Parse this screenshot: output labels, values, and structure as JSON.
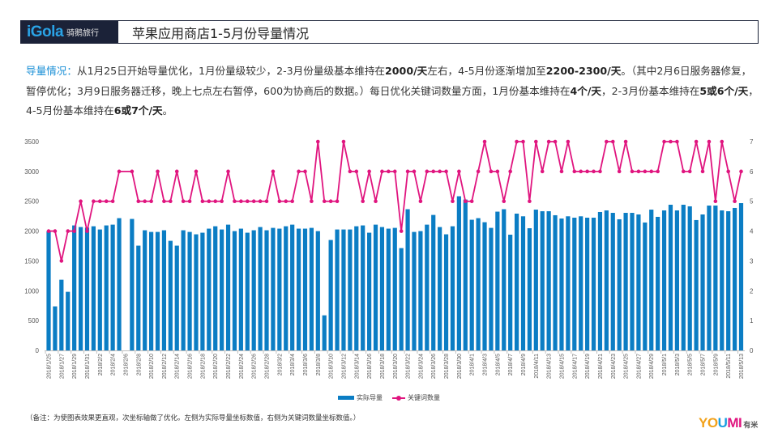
{
  "header": {
    "logo_main": "iGola",
    "logo_sub": "骑鹅旅行",
    "title": "苹果应用商店1-5月份导量情况"
  },
  "intro": {
    "segments": [
      {
        "text": "导量情况：",
        "style": "accent"
      },
      {
        "text": "从1月25日开始导量优化，1月份量级较少，2-3月份量级基本维持在"
      },
      {
        "text": "2000/天",
        "style": "bold"
      },
      {
        "text": "左右，4-5月份逐渐增加至"
      },
      {
        "text": "2200-2300/天",
        "style": "bold"
      },
      {
        "text": "。（其中2月6日服务器修复，暂停优化；3月9日服务器迁移，晚上七点左右暂停，600为协商后的数据。）每日优化关键词数量方面，1月份基本维持在"
      },
      {
        "text": "4个/天",
        "style": "bold"
      },
      {
        "text": "，2-3月份基本维持在"
      },
      {
        "text": "5或6个/天",
        "style": "bold"
      },
      {
        "text": "，4-5月份基本维持在"
      },
      {
        "text": "6或7个/天",
        "style": "bold"
      },
      {
        "text": "。"
      }
    ]
  },
  "chart_data": {
    "type": "bar+line",
    "grid": false,
    "legend_position": "bottom",
    "colors": {
      "bars": "#0b7dc4",
      "line": "#e0157f",
      "accent": "#1a8fd6"
    },
    "left_axis": {
      "range": [
        0,
        3500
      ],
      "ticks": [
        "0",
        "500",
        "1000",
        "1500",
        "2000",
        "2500",
        "3000",
        "3500"
      ]
    },
    "right_axis": {
      "range": [
        0,
        7
      ],
      "ticks": [
        "0",
        "1",
        "2",
        "3",
        "4",
        "5",
        "6",
        "7"
      ]
    },
    "categories": [
      "2018/1/25",
      "2018/1/26",
      "2018/1/27",
      "2018/1/28",
      "2018/1/29",
      "2018/1/30",
      "2018/1/31",
      "2018/2/1",
      "2018/2/2",
      "2018/2/3",
      "2018/2/4",
      "2018/2/5",
      "2018/2/6",
      "2018/2/7",
      "2018/2/8",
      "2018/2/9",
      "2018/2/10",
      "2018/2/11",
      "2018/2/12",
      "2018/2/13",
      "2018/2/14",
      "2018/2/15",
      "2018/2/16",
      "2018/2/17",
      "2018/2/18",
      "2018/2/19",
      "2018/2/20",
      "2018/2/21",
      "2018/2/22",
      "2018/2/23",
      "2018/2/24",
      "2018/2/25",
      "2018/2/26",
      "2018/2/27",
      "2018/2/28",
      "2018/3/1",
      "2018/3/2",
      "2018/3/3",
      "2018/3/4",
      "2018/3/5",
      "2018/3/6",
      "2018/3/7",
      "2018/3/8",
      "2018/3/9",
      "2018/3/10",
      "2018/3/11",
      "2018/3/12",
      "2018/3/13",
      "2018/3/14",
      "2018/3/15",
      "2018/3/16",
      "2018/3/17",
      "2018/3/18",
      "2018/3/19",
      "2018/3/20",
      "2018/3/21",
      "2018/3/22",
      "2018/3/23",
      "2018/3/24",
      "2018/3/25",
      "2018/3/26",
      "2018/3/27",
      "2018/3/28",
      "2018/3/29",
      "2018/3/30",
      "2018/3/31",
      "2018/4/1",
      "2018/4/2",
      "2018/4/3",
      "2018/4/4",
      "2018/4/5",
      "2018/4/6",
      "2018/4/7",
      "2018/4/8",
      "2018/4/9",
      "2018/4/10",
      "2018/4/11",
      "2018/4/12",
      "2018/4/13",
      "2018/4/14",
      "2018/4/15",
      "2018/4/16",
      "2018/4/17",
      "2018/4/18",
      "2018/4/19",
      "2018/4/20",
      "2018/4/21",
      "2018/4/22",
      "2018/4/23",
      "2018/4/24",
      "2018/4/25",
      "2018/4/26",
      "2018/4/27",
      "2018/4/28",
      "2018/4/29",
      "2018/4/30",
      "2018/5/1",
      "2018/5/2",
      "2018/5/3",
      "2018/5/4",
      "2018/5/5",
      "2018/5/6",
      "2018/5/7",
      "2018/5/8",
      "2018/5/9",
      "2018/5/10",
      "2018/5/11",
      "2018/5/12",
      "2018/5/13"
    ],
    "series": [
      {
        "name": "实际导量",
        "type": "bar",
        "axis": "left",
        "values": [
          2000,
          738,
          1185,
          982,
          2095,
          2068,
          2059,
          2081,
          2027,
          2095,
          2108,
          2217,
          null,
          2204,
          1756,
          2014,
          1986,
          1986,
          2014,
          1837,
          1756,
          2014,
          1986,
          1946,
          1973,
          2041,
          2081,
          2027,
          2108,
          2000,
          2041,
          1973,
          2014,
          2068,
          2014,
          2054,
          2041,
          2081,
          2108,
          2041,
          2041,
          2054,
          2000,
          588,
          1851,
          2027,
          2027,
          2027,
          2081,
          2095,
          1973,
          2108,
          2068,
          2041,
          2054,
          1715,
          2367,
          1986,
          2000,
          2108,
          2271,
          2068,
          1946,
          2081,
          2584,
          2529,
          2190,
          2217,
          2149,
          2054,
          2326,
          2367,
          1940,
          2293,
          2248,
          2048,
          2360,
          2333,
          2333,
          2266,
          2211,
          2248,
          2225,
          2248,
          2225,
          2225,
          2320,
          2347,
          2306,
          2198,
          2306,
          2306,
          2279,
          2144,
          2360,
          2239,
          2347,
          2442,
          2347,
          2442,
          2415,
          2185,
          2279,
          2428,
          2428,
          2347,
          2333,
          2388,
          2469
        ]
      },
      {
        "name": "关键词数量",
        "type": "line",
        "axis": "right",
        "values": [
          4,
          4,
          3,
          4,
          4,
          5,
          4,
          5,
          5,
          5,
          5,
          6,
          null,
          6,
          5,
          5,
          5,
          6,
          5,
          5,
          6,
          5,
          5,
          6,
          5,
          5,
          5,
          5,
          6,
          5,
          5,
          5,
          5,
          5,
          5,
          6,
          5,
          5,
          5,
          6,
          6,
          5,
          7,
          5,
          5,
          5,
          7,
          6,
          6,
          5,
          6,
          5,
          6,
          6,
          6,
          4,
          6,
          6,
          5,
          6,
          6,
          6,
          6,
          5,
          6,
          5,
          5,
          6,
          7,
          6,
          6,
          5,
          6,
          7,
          7,
          5,
          7,
          6,
          7,
          7,
          6,
          7,
          6,
          6,
          6,
          6,
          6,
          7,
          7,
          6,
          7,
          6,
          6,
          6,
          6,
          6,
          7,
          7,
          7,
          6,
          6,
          7,
          6,
          7,
          5,
          7,
          6,
          5,
          6
        ]
      }
    ]
  },
  "footnote": "（备注：为使图表效果更直观，次坐标轴做了优化。左侧为实际导量坐标数值，右侧为关键词数量坐标数值。）",
  "brand": {
    "main": "YOUMI",
    "sub": "有米"
  }
}
